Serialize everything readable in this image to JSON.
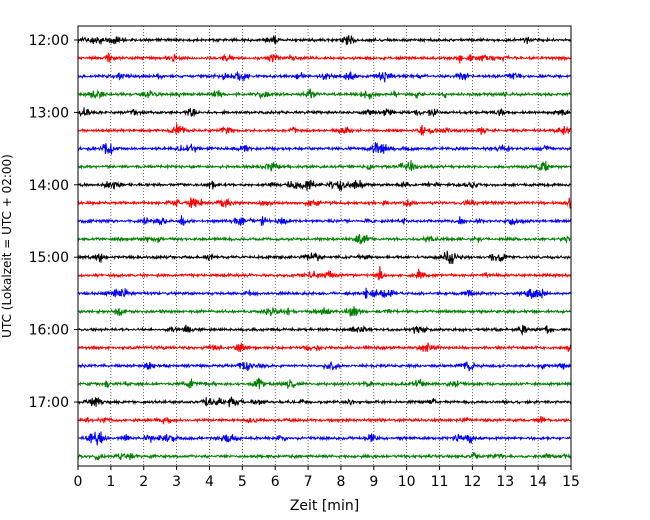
{
  "chart_data": {
    "type": "line",
    "title": "",
    "xlabel": "Zeit  [min]",
    "ylabel": "UTC (Lokalzeit = UTC + 02:00)",
    "xlim": [
      0,
      15
    ],
    "x_ticks": [
      "0",
      "1",
      "2",
      "3",
      "4",
      "5",
      "6",
      "7",
      "8",
      "9",
      "10",
      "11",
      "12",
      "13",
      "14",
      "15"
    ],
    "y_tick_labels": [
      "12:00",
      "13:00",
      "14:00",
      "15:00",
      "16:00",
      "17:00"
    ],
    "grid": "vertical-dotted",
    "row_minutes": 15,
    "trace_colors": [
      "#000000",
      "#ff0000",
      "#0000ff",
      "#008000"
    ],
    "traces": [
      {
        "time": "12:00",
        "color": "#000000"
      },
      {
        "time": "12:15",
        "color": "#ff0000"
      },
      {
        "time": "12:30",
        "color": "#0000ff"
      },
      {
        "time": "12:45",
        "color": "#008000"
      },
      {
        "time": "13:00",
        "color": "#000000"
      },
      {
        "time": "13:15",
        "color": "#ff0000"
      },
      {
        "time": "13:30",
        "color": "#0000ff"
      },
      {
        "time": "13:45",
        "color": "#008000"
      },
      {
        "time": "14:00",
        "color": "#000000"
      },
      {
        "time": "14:15",
        "color": "#ff0000"
      },
      {
        "time": "14:30",
        "color": "#0000ff"
      },
      {
        "time": "14:45",
        "color": "#008000"
      },
      {
        "time": "15:00",
        "color": "#000000"
      },
      {
        "time": "15:15",
        "color": "#ff0000"
      },
      {
        "time": "15:30",
        "color": "#0000ff"
      },
      {
        "time": "15:45",
        "color": "#008000"
      },
      {
        "time": "16:00",
        "color": "#000000"
      },
      {
        "time": "16:15",
        "color": "#ff0000"
      },
      {
        "time": "16:30",
        "color": "#0000ff"
      },
      {
        "time": "16:45",
        "color": "#008000"
      },
      {
        "time": "17:00",
        "color": "#000000"
      },
      {
        "time": "17:15",
        "color": "#ff0000"
      },
      {
        "time": "17:30",
        "color": "#0000ff"
      },
      {
        "time": "17:45",
        "color": "#008000"
      }
    ]
  }
}
